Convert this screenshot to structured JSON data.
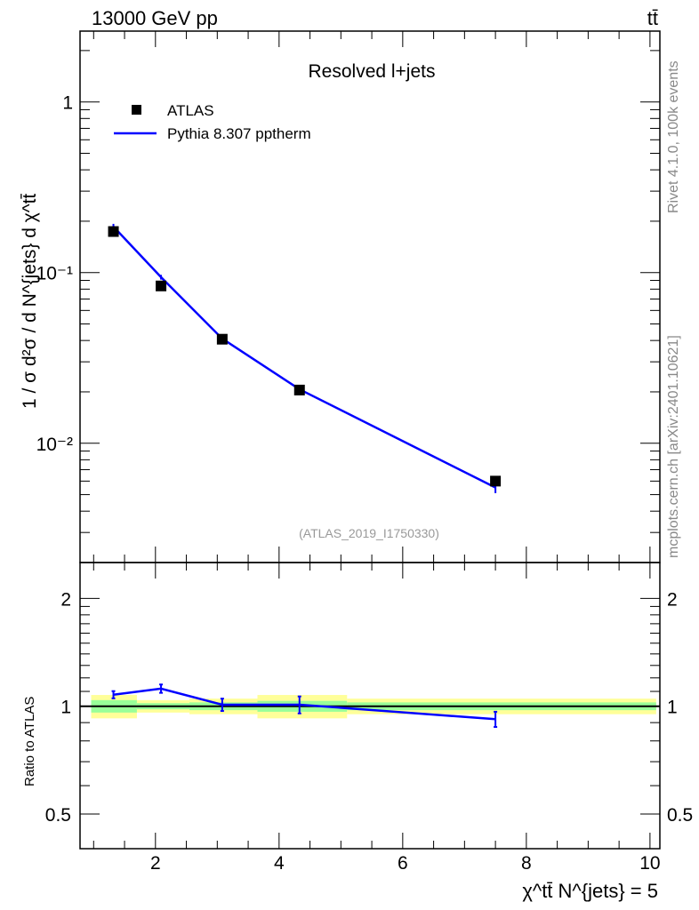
{
  "header": {
    "left": "13000 GeV pp",
    "right": "tt̄"
  },
  "side_texts": {
    "rivet": "Rivet 4.1.0,  100k events",
    "mcplots": "mcplots.cern.ch [arXiv:2401.10621]"
  },
  "colors": {
    "data": "#000000",
    "mc": "#0000ff",
    "band_stat": "#99ff99",
    "band_total": "#ffff99"
  },
  "chart_data": [
    {
      "type": "scatter",
      "title": "Resolved l+jets",
      "watermark": "(ATLAS_2019_I1750330)",
      "xlabel": "χ^tt̄ N^{jets} = 5",
      "ylabel": "1 / σ d²σ / d N^{jets} d χ^tt̄",
      "yscale": "log",
      "xlim": [
        0.78,
        10.16
      ],
      "ylim": [
        0.002,
        2.6
      ],
      "yticks": [
        {
          "v": 1,
          "label": "1"
        },
        {
          "v": 0.1,
          "label": "10⁻¹"
        },
        {
          "v": 0.01,
          "label": "10⁻²"
        }
      ],
      "legend": {
        "position": "top-left",
        "entries": [
          "ATLAS",
          "Pythia 8.307 pptherm"
        ]
      },
      "x": [
        1.32,
        2.09,
        3.08,
        4.33,
        7.5
      ],
      "series": [
        {
          "name": "ATLAS",
          "values": [
            0.174,
            0.0835,
            0.0407,
            0.0205,
            0.006
          ],
          "errors": [
            0.006,
            0.003,
            0.0012,
            0.0006,
            0.0002
          ]
        },
        {
          "name": "Pythia 8.307 pptherm",
          "values": [
            0.186,
            0.094,
            0.041,
            0.0207,
            0.0055
          ],
          "errors": [
            0.007,
            0.003,
            0.0015,
            0.0008,
            0.0004
          ]
        }
      ]
    },
    {
      "type": "line",
      "ylabel": "Ratio to ATLAS",
      "yscale": "log",
      "xlim": [
        0.78,
        10.16
      ],
      "ylim": [
        0.4,
        2.52
      ],
      "xticks": [
        2,
        4,
        6,
        8,
        10
      ],
      "yticks": [
        {
          "v": 2,
          "label": "2"
        },
        {
          "v": 1,
          "label": "1"
        },
        {
          "v": 0.5,
          "label": "0.5"
        }
      ],
      "bins": [
        [
          0.96,
          1.7
        ],
        [
          1.7,
          2.55
        ],
        [
          2.55,
          3.65
        ],
        [
          3.65,
          5.1
        ],
        [
          5.1,
          10.1
        ]
      ],
      "band_stat": [
        0.04,
        0.02,
        0.025,
        0.035,
        0.025
      ],
      "band_total": [
        0.075,
        0.04,
        0.05,
        0.075,
        0.05
      ],
      "x": [
        1.32,
        2.09,
        3.08,
        4.33,
        7.5
      ],
      "series": [
        {
          "name": "Pythia 8.307 pptherm",
          "values": [
            1.077,
            1.12,
            1.01,
            1.01,
            0.92
          ],
          "errors": [
            0.025,
            0.03,
            0.04,
            0.055,
            0.045
          ]
        }
      ]
    }
  ]
}
